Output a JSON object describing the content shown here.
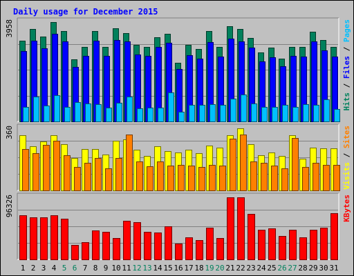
{
  "chart_data": {
    "type": "bar",
    "title": "Daily usage for December 2015",
    "colors": {
      "background": "#c0c0c0",
      "panel": "#c0c0c0",
      "grid": "#808080",
      "title": "#0000ff",
      "hits": "#00805c",
      "files": "#0000ff",
      "pages": "#00c0ff",
      "visits": "#ffff00",
      "sites": "#ff8000",
      "kbytes": "#ff0000",
      "weekday_label": "#000000",
      "weekend_label": "#00805c"
    },
    "categories": [
      "1",
      "2",
      "3",
      "4",
      "5",
      "6",
      "7",
      "8",
      "9",
      "10",
      "11",
      "12",
      "13",
      "14",
      "15",
      "16",
      "17",
      "18",
      "19",
      "20",
      "21",
      "22",
      "23",
      "24",
      "25",
      "26",
      "27",
      "28",
      "29",
      "30",
      "31"
    ],
    "weekend_days": [
      "5",
      "6",
      "12",
      "13",
      "19",
      "20",
      "26",
      "27"
    ],
    "panels": [
      {
        "id": "hits-files-pages",
        "max_label": "3958",
        "ymax": 3958,
        "axis_labels": [
          {
            "text": "Hits",
            "color": "#00805c"
          },
          {
            "text": " / ",
            "color": "#000000"
          },
          {
            "text": "Files",
            "color": "#0000ff"
          },
          {
            "text": " / ",
            "color": "#000000"
          },
          {
            "text": "Pages",
            "color": "#00c0ff"
          }
        ],
        "series": [
          {
            "name": "Hits",
            "color": "#00805c",
            "values": [
              3220,
              3690,
              3380,
              3958,
              3590,
              2470,
              2960,
              3590,
              2970,
              3700,
              3530,
              3060,
              2970,
              3360,
              3480,
              2350,
              3040,
              2890,
              3600,
              2970,
              3790,
              3680,
              3330,
              2740,
              2930,
              2500,
              2960,
              2970,
              3580,
              3230,
              2960
            ]
          },
          {
            "name": "Files",
            "color": "#0000ff",
            "values": [
              2800,
              3210,
              2920,
              3500,
              3190,
              2160,
              2620,
              3210,
              2600,
              3250,
              3180,
              2670,
              2600,
              2980,
              3120,
              2100,
              2650,
              2500,
              3170,
              2580,
              3300,
              3200,
              2930,
              2390,
              2550,
              2210,
              2600,
              2570,
              3180,
              2840,
              2590
            ]
          },
          {
            "name": "Pages",
            "color": "#00c0ff",
            "values": [
              580,
              980,
              640,
              1040,
              590,
              760,
              710,
              700,
              540,
              740,
              990,
              510,
              550,
              540,
              1150,
              380,
              650,
              670,
              700,
              660,
              920,
              1080,
              720,
              580,
              570,
              660,
              580,
              690,
              650,
              880,
              500
            ]
          }
        ]
      },
      {
        "id": "visits-sites",
        "max_label": "360",
        "ymax": 360,
        "axis_labels": [
          {
            "text": "Visits",
            "color": "#ffff00"
          },
          {
            "text": " / ",
            "color": "#000000"
          },
          {
            "text": "Sites",
            "color": "#ff8000"
          }
        ],
        "series": [
          {
            "name": "Visits",
            "color": "#ffff00",
            "values": [
              320,
              255,
              285,
              320,
              270,
              190,
              240,
              240,
              210,
              290,
              295,
              235,
              200,
              255,
              230,
              220,
              235,
              215,
              260,
              250,
              320,
              360,
              270,
              205,
              220,
              200,
              320,
              185,
              250,
              245,
              245
            ]
          },
          {
            "name": "Sites",
            "color": "#ff8000",
            "values": [
              240,
              215,
              265,
              290,
              205,
              135,
              160,
              190,
              130,
              190,
              325,
              170,
              140,
              170,
              145,
              150,
              145,
              135,
              150,
              145,
              300,
              325,
              170,
              160,
              145,
              130,
              305,
              135,
              160,
              150,
              150
            ]
          }
        ]
      },
      {
        "id": "kbytes",
        "max_label": "96326",
        "ymax": 96326,
        "axis_labels": [
          {
            "text": "KBytes",
            "color": "#ff0000"
          }
        ],
        "series": [
          {
            "name": "KBytes",
            "color": "#ff0000",
            "values": [
              68000,
              65000,
              65500,
              68000,
              63500,
              22000,
              26500,
              44500,
              42500,
              33500,
              59500,
              58000,
              42500,
              42000,
              51000,
              24500,
              34500,
              29500,
              49000,
              33000,
              96326,
              96326,
              71000,
              46500,
              48500,
              36500,
              46000,
              34000,
              45500,
              49500,
              71500
            ]
          }
        ]
      }
    ]
  }
}
